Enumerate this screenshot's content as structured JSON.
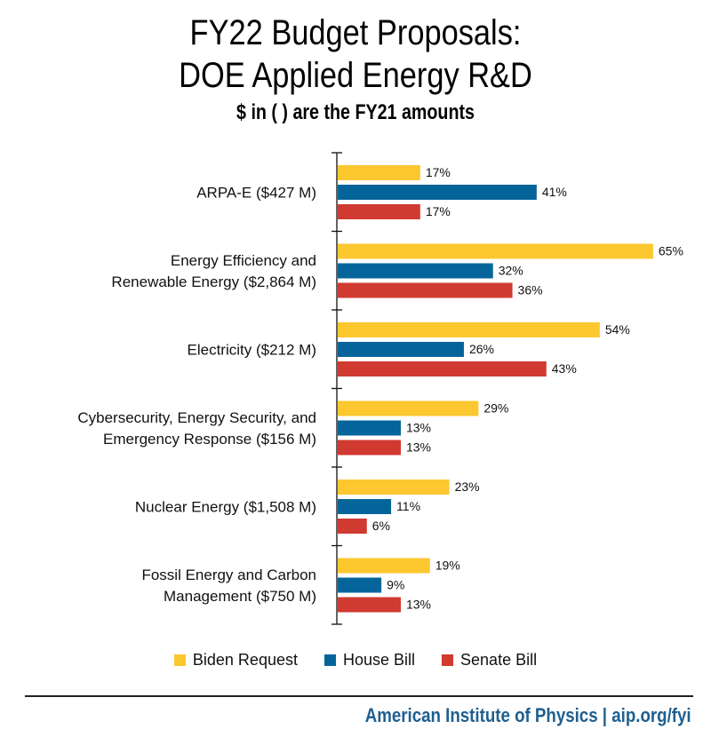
{
  "header": {
    "title_line1": "FY22 Budget Proposals:",
    "title_line2": "DOE Applied Energy R&D",
    "subtitle": "$ in ( ) are the FY21 amounts"
  },
  "colors": {
    "biden": "#FCC72F",
    "house": "#05659B",
    "senate": "#D03A31",
    "footer": "#1F5F8F"
  },
  "chart_data": {
    "type": "bar",
    "orientation": "horizontal",
    "title": "FY22 Budget Proposals: DOE Applied Energy R&D",
    "subtitle": "$ in ( ) are the FY21 amounts",
    "xlabel": "",
    "ylabel": "",
    "xlim": [
      0,
      70
    ],
    "unit": "%",
    "grid": false,
    "legend_position": "bottom",
    "categories": [
      [
        "ARPA-E ($427 M)"
      ],
      [
        "Energy Efficiency and",
        "Renewable Energy ($2,864 M)"
      ],
      [
        "Electricity ($212 M)"
      ],
      [
        "Cybersecurity, Energy Security, and",
        "Emergency Response ($156 M)"
      ],
      [
        "Nuclear Energy ($1,508 M)"
      ],
      [
        "Fossil Energy and Carbon",
        "Management ($750 M)"
      ]
    ],
    "series": [
      {
        "name": "Biden Request",
        "color": "#FCC72F",
        "values": [
          17,
          65,
          54,
          29,
          23,
          19
        ]
      },
      {
        "name": "House Bill",
        "color": "#05659B",
        "values": [
          41,
          32,
          26,
          13,
          11,
          9
        ]
      },
      {
        "name": "Senate Bill",
        "color": "#D03A31",
        "values": [
          17,
          36,
          43,
          13,
          6,
          13
        ]
      }
    ]
  },
  "legend": [
    {
      "label": "Biden Request",
      "color": "#FCC72F"
    },
    {
      "label": "House Bill",
      "color": "#05659B"
    },
    {
      "label": "Senate Bill",
      "color": "#D03A31"
    }
  ],
  "footer": {
    "text": "American Institute of Physics | aip.org/fyi"
  }
}
